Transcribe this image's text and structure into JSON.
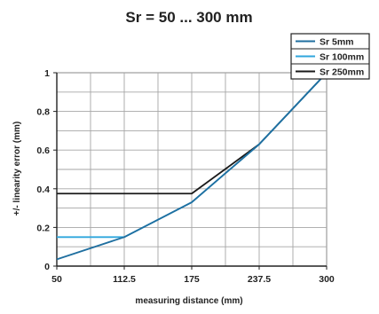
{
  "chart_data": {
    "type": "line",
    "title": "Sr = 50 ... 300 mm",
    "xlabel": "measuring distance (mm)",
    "ylabel": "+/- linearity error (mm)",
    "xlim": [
      50,
      300
    ],
    "ylim": [
      0,
      1
    ],
    "x_ticks": [
      "50",
      "112.5",
      "175",
      "237.5",
      "300"
    ],
    "y_ticks": [
      "0",
      "0.2",
      "0.4",
      "0.6",
      "0.8",
      "1"
    ],
    "x_minor_step": 31.25,
    "y_minor_step": 0.1,
    "grid": true,
    "legend_position": "top-right",
    "series": [
      {
        "name": "Sr 5mm",
        "color": "#1f6fa0",
        "x": [
          50,
          112.5,
          175,
          237.5,
          300
        ],
        "y": [
          0.035,
          0.15,
          0.33,
          0.63,
          1.0
        ]
      },
      {
        "name": "Sr 100mm",
        "color": "#2fa6dd",
        "x": [
          50,
          112.5,
          175,
          237.5,
          300
        ],
        "y": [
          0.15,
          0.15,
          0.33,
          0.63,
          1.0
        ]
      },
      {
        "name": "Sr 250mm",
        "color": "#1a1a1a",
        "x": [
          50,
          175,
          237.5,
          300
        ],
        "y": [
          0.375,
          0.375,
          0.63,
          1.0
        ]
      }
    ]
  }
}
